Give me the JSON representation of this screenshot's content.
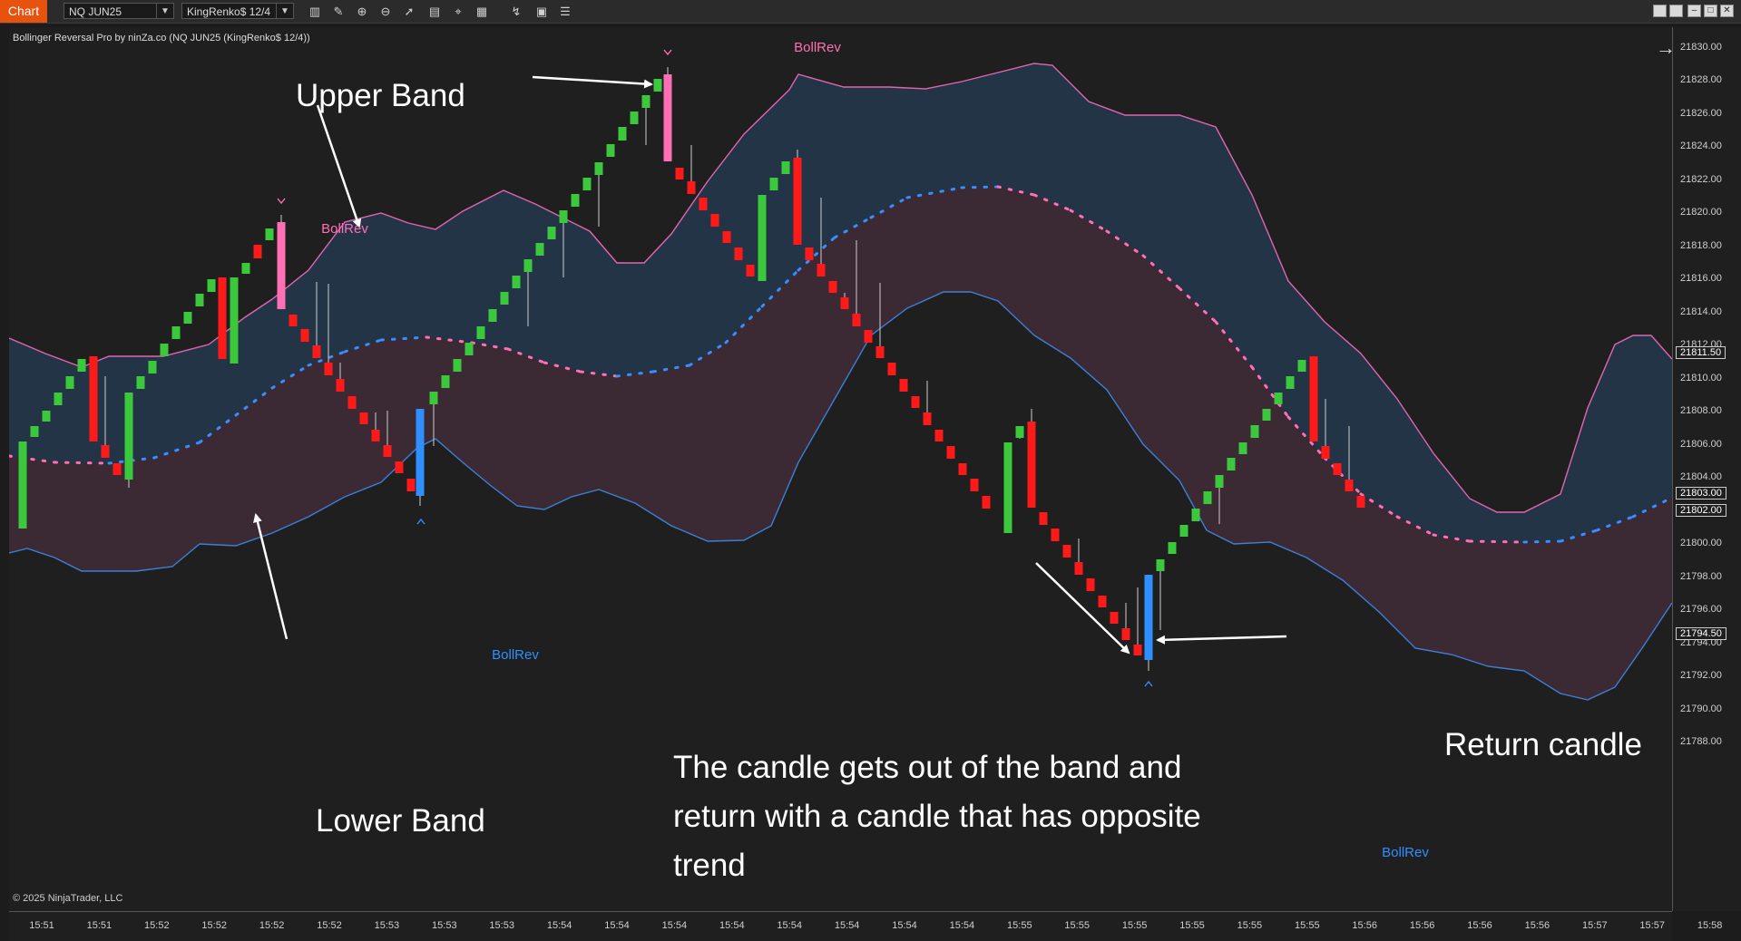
{
  "toolbar": {
    "chart_tab": "Chart",
    "instrument": "NQ JUN25",
    "bar_type": "KingRenko$ 12/4"
  },
  "plot": {
    "title": "Bollinger Reversal Pro by ninZa.co (NQ JUN25 (KingRenko$ 12/4))",
    "copyright": "© 2025 NinjaTrader, LLC"
  },
  "annotations": {
    "upper_band": "Upper Band",
    "lower_band": "Lower Band",
    "return_candle": "Return candle",
    "explanation": "The candle gets out of the band and return with a candle that has opposite trend"
  },
  "signals": [
    {
      "label": "BollRev",
      "type": "sell"
    },
    {
      "label": "BollRev",
      "type": "buy"
    },
    {
      "label": "BollRev",
      "type": "sell"
    },
    {
      "label": "BollRev",
      "type": "buy"
    }
  ],
  "y_axis": {
    "labels": [
      "21830.00",
      "21828.00",
      "21826.00",
      "21824.00",
      "21822.00",
      "21820.00",
      "21818.00",
      "21816.00",
      "21814.00",
      "21812.00",
      "21810.00",
      "21808.00",
      "21806.00",
      "21804.00",
      "21800.00",
      "21798.00",
      "21796.00",
      "21794.00",
      "21792.00",
      "21790.00",
      "21788.00"
    ],
    "markers": [
      "21811.50",
      "21803.00",
      "21802.00",
      "21794.50"
    ]
  },
  "x_axis": {
    "labels": [
      "15:51",
      "15:51",
      "15:52",
      "15:52",
      "15:52",
      "15:52",
      "15:53",
      "15:53",
      "15:53",
      "15:54",
      "15:54",
      "15:54",
      "15:54",
      "15:54",
      "15:54",
      "15:54",
      "15:54",
      "15:55",
      "15:55",
      "15:55",
      "15:55",
      "15:55",
      "15:55",
      "15:56",
      "15:56",
      "15:56",
      "15:56",
      "15:57",
      "15:57",
      "15:58"
    ]
  },
  "colors": {
    "up_candle": "#3cc83c",
    "down_candle": "#ff1a1a",
    "sell_signal": "#ff6fb5",
    "buy_signal": "#2f8fff",
    "upper_zone": "#243447",
    "lower_zone": "#3b2a34",
    "upper_band": "#e066b0",
    "lower_band": "#3d7fd6"
  }
}
